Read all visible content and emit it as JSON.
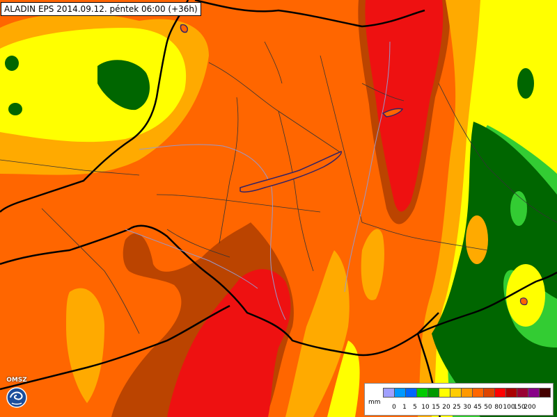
{
  "header": {
    "title": "ALADIN EPS 2014.09.12. péntek 06:00 (+36h)"
  },
  "logo": {
    "text": "OMSZ",
    "icon": "omsz-logo-icon"
  },
  "legend": {
    "unit": "mm",
    "labels": [
      "0",
      "1",
      "5",
      "10",
      "15",
      "20",
      "25",
      "30",
      "45",
      "50",
      "80",
      "100",
      "150",
      "200"
    ],
    "colors": [
      "#a0a0ff",
      "#0099ff",
      "#0066ff",
      "#00cc00",
      "#009900",
      "#ffff00",
      "#ffcc00",
      "#ff9900",
      "#ff6600",
      "#dd4400",
      "#ff0000",
      "#aa0000",
      "#990033",
      "#880088",
      "#440000"
    ]
  },
  "palette": {
    "background": "#ff6600",
    "red": "#ee1111",
    "brown": "#bb4400",
    "light_orange": "#ffaa00",
    "yellow": "#ffff00",
    "light_green": "#33cc33",
    "dark_green": "#006600",
    "border_color": "#000000",
    "admin_color": "#333333",
    "river_color": "#9999cc",
    "lake_color": "#332266"
  }
}
